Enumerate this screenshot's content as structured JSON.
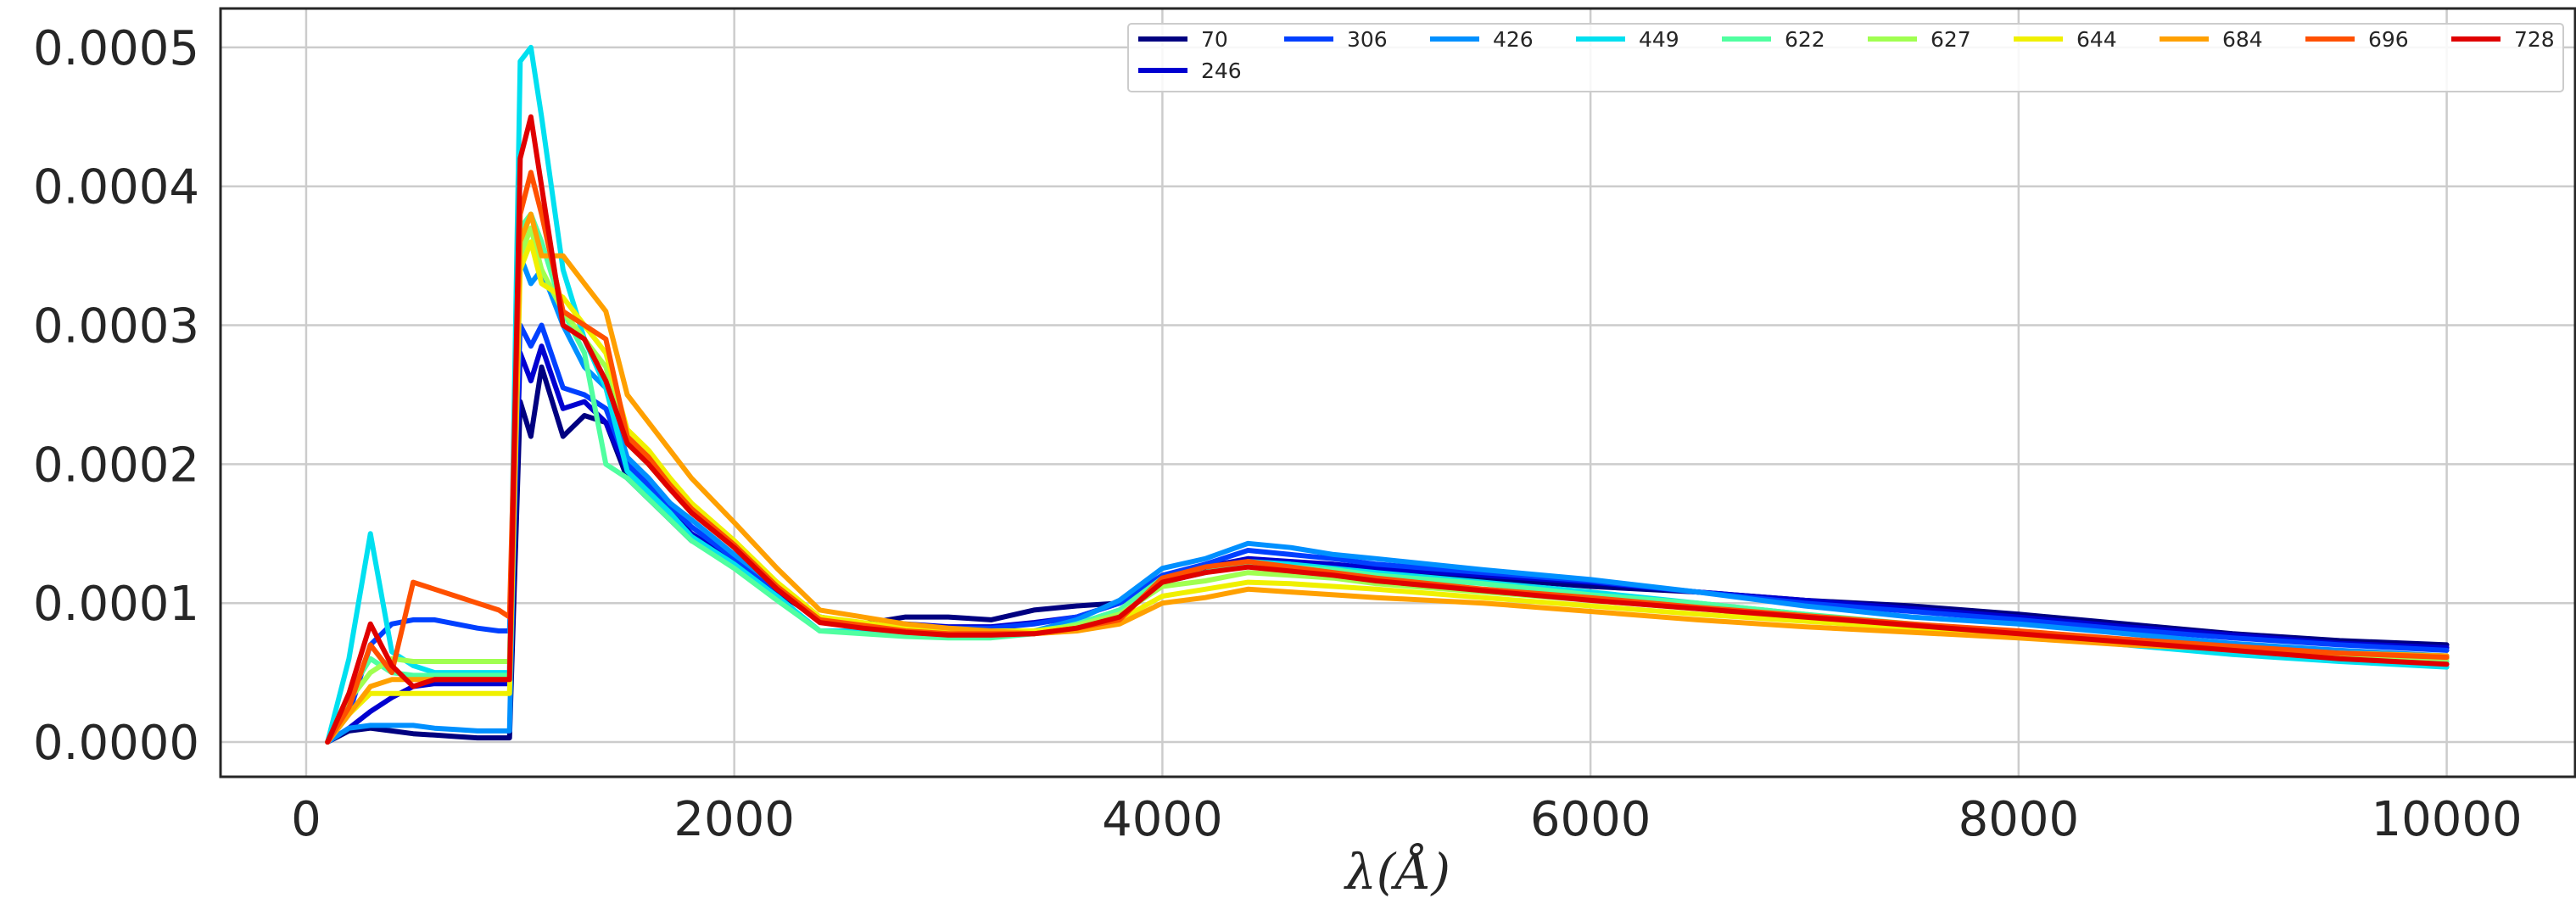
{
  "chart_data": {
    "type": "line",
    "title": "",
    "xlabel": "λ(Å)",
    "ylabel": "",
    "xlim": [
      -400,
      10600
    ],
    "ylim": [
      -2.5e-05,
      0.000528
    ],
    "x_ticks": [
      0,
      2000,
      4000,
      6000,
      8000,
      10000
    ],
    "x_tick_labels": [
      "0",
      "2000",
      "4000",
      "6000",
      "8000",
      "10000"
    ],
    "y_ticks": [
      0.0,
      0.0001,
      0.0002,
      0.0003,
      0.0004,
      0.0005
    ],
    "y_tick_labels": [
      "0.0000",
      "0.0001",
      "0.0002",
      "0.0003",
      "0.0004",
      "0.0005"
    ],
    "grid": true,
    "legend": {
      "position": "top-right",
      "columns": 10
    },
    "x": [
      100,
      200,
      300,
      400,
      500,
      600,
      700,
      800,
      900,
      950,
      1000,
      1050,
      1100,
      1200,
      1300,
      1400,
      1500,
      1600,
      1700,
      1800,
      2000,
      2200,
      2400,
      2600,
      2800,
      3000,
      3200,
      3400,
      3600,
      3800,
      4000,
      4200,
      4400,
      4600,
      4800,
      5000,
      5500,
      6000,
      6500,
      7000,
      7500,
      8000,
      8500,
      9000,
      9500,
      10000
    ],
    "series": [
      {
        "name": "70",
        "color": "#000080",
        "values": [
          0.0,
          8e-06,
          1e-05,
          8e-06,
          6e-06,
          5e-06,
          4e-06,
          3e-06,
          3e-06,
          3e-06,
          0.000245,
          0.00022,
          0.00027,
          0.00022,
          0.000235,
          0.00023,
          0.00019,
          0.000175,
          0.00016,
          0.000145,
          0.00013,
          0.000108,
          8.8e-05,
          8.5e-05,
          9e-05,
          9e-05,
          8.8e-05,
          9.5e-05,
          9.8e-05,
          0.0001,
          0.000118,
          0.000125,
          0.00013,
          0.000128,
          0.000126,
          0.000122,
          0.000118,
          0.000112,
          0.000108,
          0.000102,
          9.8e-05,
          9.2e-05,
          8.5e-05,
          7.8e-05,
          7.3e-05,
          7e-05
        ]
      },
      {
        "name": "246",
        "color": "#0000d0",
        "values": [
          0.0,
          1e-05,
          2.2e-05,
          3.2e-05,
          4e-05,
          4.2e-05,
          4.2e-05,
          4.2e-05,
          4.2e-05,
          4.2e-05,
          0.00028,
          0.00026,
          0.000285,
          0.00024,
          0.000245,
          0.00023,
          0.000195,
          0.00018,
          0.000165,
          0.00015,
          0.00013,
          0.000108,
          9e-05,
          8.5e-05,
          8.5e-05,
          8.3e-05,
          8.3e-05,
          8.6e-05,
          9e-05,
          0.0001,
          0.000118,
          0.000126,
          0.000132,
          0.00013,
          0.000128,
          0.000125,
          0.00012,
          0.000115,
          0.000108,
          0.000102,
          9.6e-05,
          9e-05,
          8.3e-05,
          7.7e-05,
          7.1e-05,
          6.8e-05
        ]
      },
      {
        "name": "306",
        "color": "#0040ff",
        "values": [
          0.0,
          2e-05,
          7e-05,
          8.5e-05,
          8.8e-05,
          8.8e-05,
          8.5e-05,
          8.2e-05,
          8e-05,
          8e-05,
          0.0003,
          0.000285,
          0.0003,
          0.000255,
          0.00025,
          0.00024,
          0.0002,
          0.000185,
          0.00017,
          0.000155,
          0.000132,
          0.00011,
          9e-05,
          8.4e-05,
          8.3e-05,
          8.2e-05,
          8.2e-05,
          8.5e-05,
          9e-05,
          0.0001,
          0.00012,
          0.000128,
          0.000138,
          0.000135,
          0.000132,
          0.000128,
          0.000122,
          0.000116,
          0.000108,
          0.0001,
          9.4e-05,
          8.8e-05,
          8.1e-05,
          7.5e-05,
          7e-05,
          6.6e-05
        ]
      },
      {
        "name": "426",
        "color": "#0090ff",
        "values": [
          0.0,
          1e-05,
          1.2e-05,
          1.2e-05,
          1.2e-05,
          1e-05,
          9e-06,
          8e-06,
          8e-06,
          8e-06,
          0.00035,
          0.00033,
          0.00034,
          0.0003,
          0.00027,
          0.000255,
          0.000205,
          0.00019,
          0.000172,
          0.00016,
          0.000135,
          0.000112,
          8.8e-05,
          8.3e-05,
          8.2e-05,
          8e-05,
          7.8e-05,
          8e-05,
          8.8e-05,
          0.000102,
          0.000125,
          0.000132,
          0.000143,
          0.00014,
          0.000135,
          0.000132,
          0.000124,
          0.000117,
          0.000108,
          9.8e-05,
          9e-05,
          8.5e-05,
          7.8e-05,
          7.1e-05,
          6.6e-05,
          6.2e-05
        ]
      },
      {
        "name": "449",
        "color": "#00e0f0",
        "values": [
          0.0,
          6e-05,
          0.00015,
          6.5e-05,
          5.5e-05,
          5e-05,
          5e-05,
          5e-05,
          5e-05,
          5e-05,
          0.00049,
          0.0005,
          0.00045,
          0.00034,
          0.00029,
          0.000255,
          0.000195,
          0.00018,
          0.000165,
          0.000148,
          0.000128,
          0.000105,
          8e-05,
          8e-05,
          7.8e-05,
          7.6e-05,
          7.6e-05,
          7.8e-05,
          8.5e-05,
          9.5e-05,
          0.000115,
          0.000122,
          0.00013,
          0.000128,
          0.000125,
          0.000122,
          0.000115,
          0.000108,
          0.0001,
          9.2e-05,
          8.3e-05,
          7.7e-05,
          7e-05,
          6.3e-05,
          5.8e-05,
          5.4e-05
        ]
      },
      {
        "name": "622",
        "color": "#50ffa0",
        "values": [
          0.0,
          3.5e-05,
          6e-05,
          5e-05,
          4.8e-05,
          4.8e-05,
          4.8e-05,
          4.8e-05,
          4.8e-05,
          4.8e-05,
          0.00037,
          0.00038,
          0.00036,
          0.00031,
          0.00028,
          0.0002,
          0.00019,
          0.000175,
          0.00016,
          0.000145,
          0.000125,
          0.000102,
          8e-05,
          7.8e-05,
          7.6e-05,
          7.5e-05,
          7.5e-05,
          7.8e-05,
          8.5e-05,
          9.5e-05,
          0.000118,
          0.000122,
          0.000128,
          0.000126,
          0.000124,
          0.00012,
          0.000114,
          0.000106,
          0.0001,
          9.2e-05,
          8.5e-05,
          7.9e-05,
          7.2e-05,
          6.6e-05,
          6.1e-05,
          5.8e-05
        ]
      },
      {
        "name": "627",
        "color": "#a0ff50",
        "values": [
          0.0,
          3e-05,
          5e-05,
          6e-05,
          5.8e-05,
          5.8e-05,
          5.8e-05,
          5.8e-05,
          5.8e-05,
          5.8e-05,
          0.00035,
          0.00037,
          0.00034,
          0.00031,
          0.00029,
          0.00027,
          0.000215,
          0.0002,
          0.000182,
          0.000165,
          0.00014,
          0.000112,
          8.8e-05,
          8.4e-05,
          8e-05,
          7.8e-05,
          7.8e-05,
          8e-05,
          8.4e-05,
          9.2e-05,
          0.000112,
          0.000116,
          0.000122,
          0.00012,
          0.000118,
          0.000114,
          0.000108,
          0.000102,
          9.6e-05,
          9e-05,
          8.4e-05,
          7.8e-05,
          7.2e-05,
          6.7e-05,
          6.3e-05,
          6e-05
        ]
      },
      {
        "name": "644",
        "color": "#f0f000",
        "values": [
          0.0,
          2e-05,
          3.5e-05,
          3.5e-05,
          3.5e-05,
          3.5e-05,
          3.5e-05,
          3.5e-05,
          3.5e-05,
          3.5e-05,
          0.00034,
          0.00036,
          0.00033,
          0.00032,
          0.0003,
          0.00028,
          0.000225,
          0.00021,
          0.00019,
          0.000172,
          0.000145,
          0.000115,
          9e-05,
          8.6e-05,
          8.2e-05,
          8e-05,
          8e-05,
          8e-05,
          8.2e-05,
          8.8e-05,
          0.000105,
          0.00011,
          0.000115,
          0.000114,
          0.000112,
          0.00011,
          0.000104,
          9.8e-05,
          9.2e-05,
          8.7e-05,
          8.2e-05,
          7.7e-05,
          7.2e-05,
          6.8e-05,
          6.4e-05,
          6.2e-05
        ]
      },
      {
        "name": "684",
        "color": "#ffa000",
        "values": [
          0.0,
          2e-05,
          4e-05,
          4.5e-05,
          4.5e-05,
          4.5e-05,
          4.5e-05,
          4.5e-05,
          4.5e-05,
          4.5e-05,
          0.00036,
          0.00038,
          0.00035,
          0.00035,
          0.00033,
          0.00031,
          0.00025,
          0.00023,
          0.00021,
          0.00019,
          0.000158,
          0.000125,
          9.5e-05,
          9e-05,
          8.5e-05,
          8.2e-05,
          8e-05,
          7.8e-05,
          8e-05,
          8.5e-05,
          0.0001,
          0.000104,
          0.00011,
          0.000108,
          0.000106,
          0.000104,
          0.0001,
          9.4e-05,
          8.8e-05,
          8.3e-05,
          7.9e-05,
          7.5e-05,
          7e-05,
          6.7e-05,
          6.4e-05,
          6.2e-05
        ]
      },
      {
        "name": "696",
        "color": "#ff5000",
        "values": [
          0.0,
          2.5e-05,
          7e-05,
          5e-05,
          0.000115,
          0.00011,
          0.000105,
          0.0001,
          9.5e-05,
          9e-05,
          0.00038,
          0.00041,
          0.00038,
          0.00031,
          0.0003,
          0.00029,
          0.00022,
          0.000205,
          0.000185,
          0.000168,
          0.000142,
          0.000112,
          8.8e-05,
          8.4e-05,
          8e-05,
          7.8e-05,
          7.8e-05,
          7.8e-05,
          8.2e-05,
          8.8e-05,
          0.000118,
          0.000126,
          0.00013,
          0.000126,
          0.000122,
          0.000118,
          0.00011,
          0.000104,
          9.7e-05,
          9.1e-05,
          8.5e-05,
          8e-05,
          7.4e-05,
          6.9e-05,
          6.4e-05,
          6.1e-05
        ]
      },
      {
        "name": "728",
        "color": "#e00000",
        "values": [
          0.0,
          3.5e-05,
          8.5e-05,
          5.5e-05,
          4e-05,
          4.5e-05,
          4.5e-05,
          4.5e-05,
          4.5e-05,
          4.5e-05,
          0.00042,
          0.00045,
          0.0004,
          0.0003,
          0.00029,
          0.00026,
          0.000215,
          0.0002,
          0.000182,
          0.000165,
          0.00014,
          0.00011,
          8.6e-05,
          8.2e-05,
          7.9e-05,
          7.7e-05,
          7.7e-05,
          7.8e-05,
          8.2e-05,
          9e-05,
          0.000115,
          0.000122,
          0.000126,
          0.000123,
          0.00012,
          0.000116,
          0.000109,
          0.000102,
          9.6e-05,
          9e-05,
          8.4e-05,
          7.8e-05,
          7.2e-05,
          6.6e-05,
          6e-05,
          5.6e-05
        ]
      }
    ]
  }
}
